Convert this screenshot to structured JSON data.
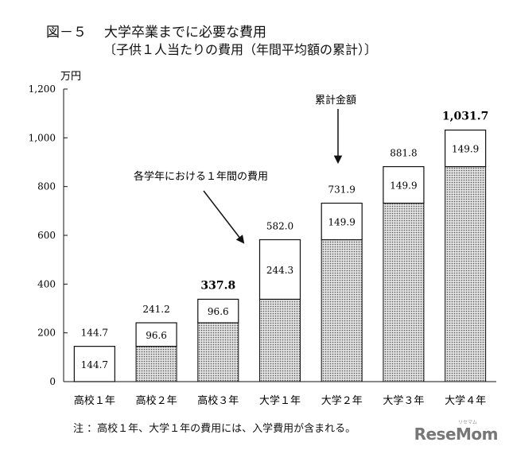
{
  "title": {
    "figure_no": "図－５",
    "main": "大学卒業までに必要な費用",
    "sub": "〔子供１人当たりの費用（年間平均額の累計）〕"
  },
  "chart_data": {
    "type": "bar",
    "stacked": true,
    "ylabel": "万円",
    "ylim": [
      0,
      1200
    ],
    "yticks": [
      0,
      200,
      400,
      600,
      800,
      1000,
      1200
    ],
    "ytick_labels": [
      "0",
      "200",
      "400",
      "600",
      "800",
      "1,000",
      "1,200"
    ],
    "grid": false,
    "categories": [
      "高校１年",
      "高校２年",
      "高校３年",
      "大学１年",
      "大学２年",
      "大学３年",
      "大学４年"
    ],
    "series": [
      {
        "values": [
          0,
          144.7,
          241.2,
          337.8,
          582.0,
          731.9,
          881.8
        ],
        "pattern": "dotted"
      },
      {
        "values": [
          144.7,
          96.6,
          96.6,
          244.3,
          149.9,
          149.9,
          149.9
        ],
        "pattern": "white"
      }
    ],
    "year_labels": [
      "144.7",
      "96.6",
      "96.6",
      "244.3",
      "149.9",
      "149.9",
      "149.9"
    ],
    "total_labels": [
      "144.7",
      "241.2",
      "337.8",
      "582.0",
      "731.9",
      "881.8",
      "1,031.7"
    ],
    "bold_totals": [
      2,
      6
    ],
    "annotations": {
      "per_year": "各学年における１年間の費用",
      "cumulative": "累計金額"
    }
  },
  "note": "注 ：高校１年、大学１年の費用には、入学費用が含まれる。",
  "logo": {
    "text": "ReseMom",
    "sub": "リセマム"
  }
}
